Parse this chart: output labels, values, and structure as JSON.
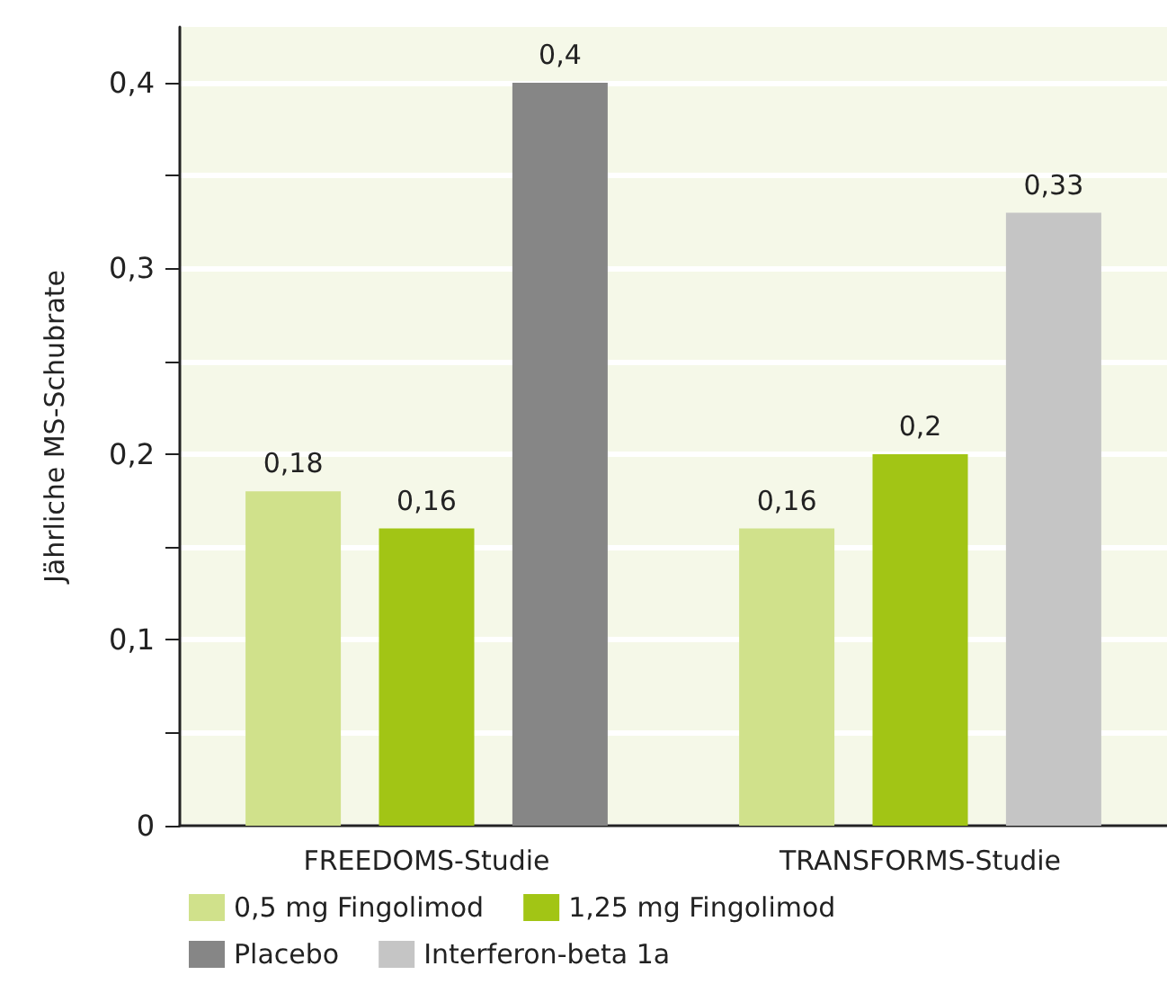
{
  "chart_data": {
    "type": "bar",
    "ylabel": "Jährliche MS-Schubrate",
    "categories": [
      "FREEDOMS-Studie",
      "TRANSFORMS-Studie"
    ],
    "series": [
      {
        "name": "0,5 mg Fingolimod",
        "color": "#d0e18b",
        "values": [
          0.18,
          0.16
        ],
        "value_labels": [
          "0,18",
          "0,16"
        ]
      },
      {
        "name": "1,25 mg Fingolimod",
        "color": "#a2c515",
        "values": [
          0.16,
          0.2
        ],
        "value_labels": [
          "0,16",
          "0,2"
        ]
      },
      {
        "name": "Placebo",
        "color": "#868686",
        "values": [
          0.4,
          null
        ],
        "value_labels": [
          "0,4",
          null
        ]
      },
      {
        "name": "Interferon-beta 1a",
        "color": "#c5c5c5",
        "values": [
          null,
          0.33
        ],
        "value_labels": [
          null,
          "0,33"
        ]
      }
    ],
    "ylim": [
      0,
      0.43
    ],
    "yticks": [
      {
        "value": 0,
        "label": "0"
      },
      {
        "value": 0.05,
        "label": null
      },
      {
        "value": 0.1,
        "label": "0,1"
      },
      {
        "value": 0.15,
        "label": null
      },
      {
        "value": 0.2,
        "label": "0,2"
      },
      {
        "value": 0.25,
        "label": null
      },
      {
        "value": 0.3,
        "label": "0,3"
      },
      {
        "value": 0.35,
        "label": null
      },
      {
        "value": 0.4,
        "label": "0,4"
      }
    ],
    "grid": "y",
    "legend": "bottom"
  }
}
